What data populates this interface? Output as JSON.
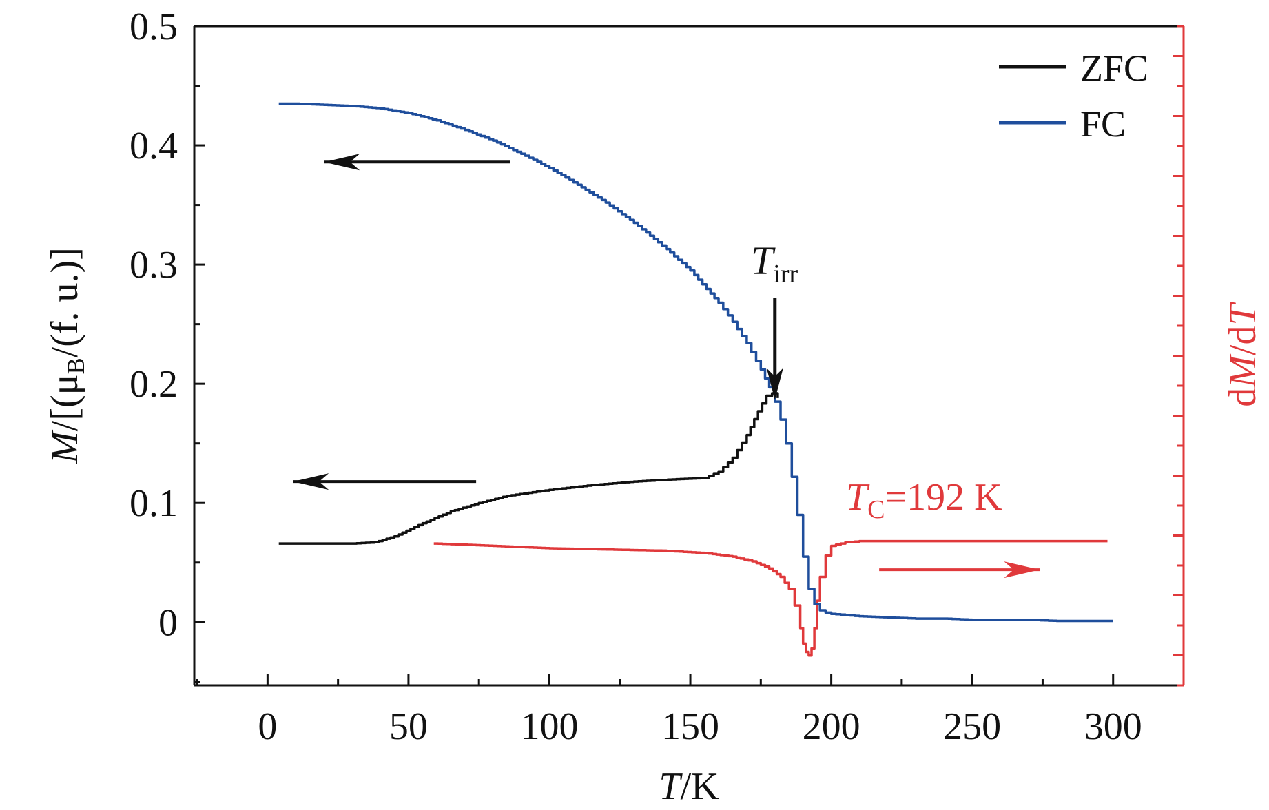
{
  "chart_data": {
    "type": "line",
    "xlabel": {
      "var": "T",
      "unit": "/K"
    },
    "ylabel_left": {
      "var": "M",
      "text_a": "/[(μ",
      "sub": "B",
      "text_b": "/(f. u.)]"
    },
    "ylabel_right": {
      "pre": "d",
      "var1": "M",
      "mid": "/d",
      "var2": "T"
    },
    "xlim": [
      -26,
      325
    ],
    "ylim_left": [
      -0.053,
      0.5
    ],
    "x_ticks": [
      0,
      50,
      100,
      150,
      200,
      250,
      300
    ],
    "x_tick_labels": [
      "0",
      "50",
      "100",
      "150",
      "200",
      "250",
      "300"
    ],
    "y_ticks": [
      0,
      0.1,
      0.2,
      0.3,
      0.4,
      0.5
    ],
    "y_tick_labels": [
      "0",
      "0.1",
      "0.2",
      "0.3",
      "0.4",
      "0.5"
    ],
    "colors": {
      "zfc": "#111111",
      "fc": "#1f4e9c",
      "dmdt": "#e0393b",
      "axis": "#111111",
      "right_axis": "#e0393b"
    },
    "legend": [
      {
        "label": "ZFC",
        "series": "zfc"
      },
      {
        "label": "FC",
        "series": "fc"
      }
    ],
    "series": [
      {
        "name": "FC",
        "key": "fc",
        "axis": "left",
        "x": [
          4,
          10,
          20,
          30,
          40,
          50,
          60,
          70,
          80,
          90,
          100,
          110,
          120,
          130,
          140,
          150,
          160,
          165,
          170,
          175,
          178,
          180,
          182,
          184,
          186,
          188,
          190,
          192,
          194,
          196,
          198,
          200,
          205,
          210,
          220,
          230,
          240,
          250,
          260,
          270,
          280,
          290,
          300
        ],
        "y": [
          0.435,
          0.435,
          0.434,
          0.433,
          0.431,
          0.427,
          0.421,
          0.413,
          0.404,
          0.393,
          0.381,
          0.367,
          0.352,
          0.335,
          0.316,
          0.295,
          0.268,
          0.252,
          0.234,
          0.212,
          0.197,
          0.185,
          0.17,
          0.15,
          0.122,
          0.09,
          0.055,
          0.028,
          0.015,
          0.01,
          0.008,
          0.007,
          0.006,
          0.005,
          0.004,
          0.003,
          0.003,
          0.002,
          0.002,
          0.002,
          0.001,
          0.001,
          0.001
        ]
      },
      {
        "name": "ZFC",
        "key": "zfc",
        "axis": "left",
        "x": [
          4,
          20,
          30,
          38,
          45,
          55,
          65,
          75,
          85,
          100,
          115,
          130,
          145,
          155,
          160,
          165,
          170,
          174,
          177,
          179,
          181
        ],
        "y": [
          0.066,
          0.066,
          0.066,
          0.067,
          0.072,
          0.083,
          0.093,
          0.1,
          0.106,
          0.111,
          0.115,
          0.118,
          0.12,
          0.121,
          0.126,
          0.138,
          0.157,
          0.177,
          0.19,
          0.192,
          0.188
        ]
      },
      {
        "name": "dM/dT",
        "key": "dmdt",
        "axis": "right",
        "x": [
          59,
          80,
          100,
          120,
          140,
          155,
          165,
          172,
          178,
          182,
          185,
          187,
          189,
          190,
          191,
          192,
          193,
          194,
          195,
          196,
          198,
          200,
          205,
          210,
          220,
          250,
          280,
          298
        ],
        "y": [
          0.066,
          0.064,
          0.062,
          0.061,
          0.06,
          0.058,
          0.055,
          0.051,
          0.045,
          0.038,
          0.028,
          0.014,
          -0.005,
          -0.018,
          -0.025,
          -0.028,
          -0.022,
          -0.005,
          0.018,
          0.038,
          0.056,
          0.064,
          0.067,
          0.068,
          0.068,
          0.068,
          0.068,
          0.068
        ]
      }
    ],
    "annotations": {
      "tirr": {
        "var": "T",
        "sub": "irr",
        "x": 180,
        "y": 0.19
      },
      "tc": {
        "var": "T",
        "sub": "C",
        "text": "=192 K",
        "x": 192
      },
      "arrows": [
        {
          "series": "fc",
          "direction": "left",
          "from_x": 86,
          "to_x": 20,
          "y": 0.386
        },
        {
          "series": "zfc",
          "direction": "left",
          "from_x": 74,
          "to_x": 9,
          "y": 0.118
        },
        {
          "series": "dmdt",
          "direction": "right",
          "from_x": 217,
          "to_x": 274,
          "y": 0.044
        }
      ]
    }
  }
}
